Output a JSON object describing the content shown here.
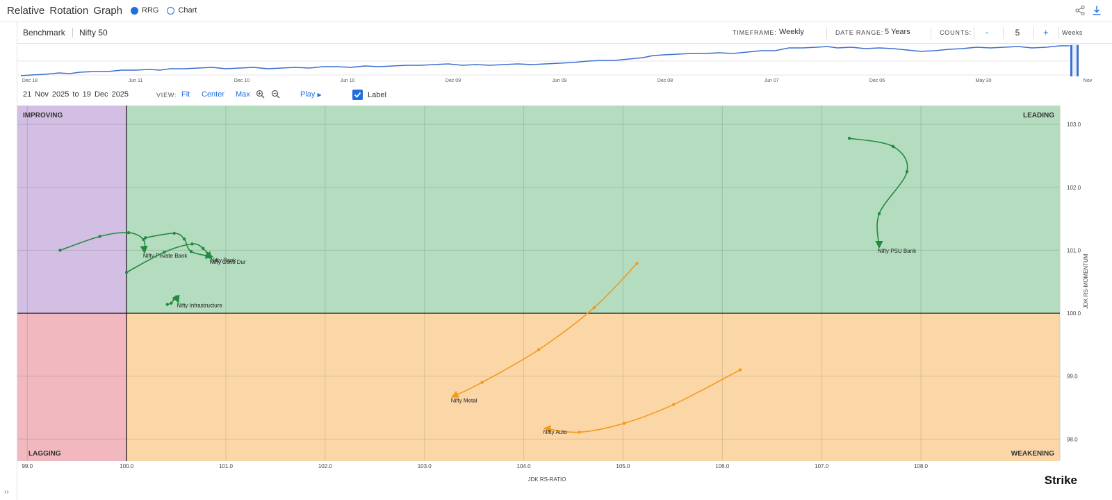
{
  "header": {
    "title": "Relative Rotation Graph",
    "modes": [
      {
        "label": "RRG",
        "selected": true
      },
      {
        "label": "Chart",
        "selected": false
      }
    ],
    "icons": [
      "share-icon",
      "download-icon"
    ]
  },
  "controls": {
    "benchmark_label": "Benchmark",
    "benchmark_value": "Nifty 50",
    "timeframe_label": "TIMEFRAME:",
    "timeframe_value": "Weekly",
    "date_range_label": "DATE RANGE:",
    "date_range_value": "5 Years",
    "counts_label": "COUNTS:",
    "counts_minus": "-",
    "counts_value": "5",
    "counts_plus": "+",
    "counts_unit": "Weeks"
  },
  "timeline": {
    "tick_labels": [
      "Dec 18",
      "Jun 11",
      "Dec 10",
      "Jun 10",
      "Dec 09",
      "Jun 09",
      "Dec 08",
      "Jun 07",
      "Dec 06",
      "May 30",
      "Nov"
    ],
    "line_color": "#3b6fd0"
  },
  "view": {
    "range_text": "21 Nov 2025 to 19 Dec 2025",
    "view_label": "VIEW:",
    "fit": "Fit",
    "center": "Center",
    "max": "Max",
    "play": "Play",
    "label_toggle": "Label",
    "label_checked": true
  },
  "brand": "Strike",
  "chart_data": {
    "type": "scatter",
    "xlabel": "JDK RS-RATIO",
    "ylabel": "JDK RS-MOMENTUM",
    "xlim": [
      98.9,
      109.4
    ],
    "ylim": [
      97.65,
      103.3
    ],
    "xticks": [
      "99.0",
      "100.0",
      "101.0",
      "102.0",
      "103.0",
      "104.0",
      "105.0",
      "106.0",
      "107.0",
      "108.0"
    ],
    "yticks": [
      "98.0",
      "99.0",
      "100.0",
      "101.0",
      "102.0",
      "103.0"
    ],
    "center": [
      100.0,
      100.0
    ],
    "quadrants": {
      "improving": {
        "label": "IMPROVING",
        "color": "#d2bfe3"
      },
      "leading": {
        "label": "LEADING",
        "color": "#b4dcbf"
      },
      "weakening": {
        "label": "WEAKENING",
        "color": "#fbd7a8"
      },
      "lagging": {
        "label": "LAGGING",
        "color": "#f1b8bf"
      }
    },
    "grid": true,
    "series": [
      {
        "name": "Nifty PSU Bank",
        "color": "#238a3f",
        "points": [
          [
            107.28,
            102.78
          ],
          [
            107.72,
            102.65
          ],
          [
            107.86,
            102.25
          ],
          [
            107.58,
            101.58
          ],
          [
            107.58,
            101.05
          ]
        ]
      },
      {
        "name": "Nifty Private Bank",
        "color": "#238a3f",
        "points": [
          [
            99.33,
            101.0
          ],
          [
            99.73,
            101.22
          ],
          [
            100.02,
            101.28
          ],
          [
            100.17,
            101.17
          ],
          [
            100.18,
            100.97
          ]
        ]
      },
      {
        "name": "Nifty Bank",
        "color": "#238a3f",
        "points": [
          [
            100.19,
            101.2
          ],
          [
            100.48,
            101.27
          ],
          [
            100.58,
            101.18
          ],
          [
            100.65,
            100.98
          ],
          [
            100.86,
            100.9
          ]
        ]
      },
      {
        "name": "Nifty Cons Dur",
        "color": "#238a3f",
        "points": [
          [
            100.0,
            100.65
          ],
          [
            100.38,
            100.97
          ],
          [
            100.66,
            101.1
          ],
          [
            100.77,
            101.03
          ],
          [
            100.85,
            100.87
          ]
        ]
      },
      {
        "name": "Nifty Infrastructure",
        "color": "#238a3f",
        "points": [
          [
            100.41,
            100.14
          ],
          [
            100.45,
            100.16
          ],
          [
            100.48,
            100.23
          ],
          [
            100.5,
            100.26
          ],
          [
            100.52,
            100.18
          ]
        ]
      },
      {
        "name": "Nifty Metal",
        "color": "#f39a1e",
        "points": [
          [
            105.14,
            100.79
          ],
          [
            104.71,
            100.09
          ],
          [
            104.15,
            99.42
          ],
          [
            103.58,
            98.9
          ],
          [
            103.28,
            98.67
          ]
        ]
      },
      {
        "name": "Nifty Auto",
        "color": "#f39a1e",
        "points": [
          [
            106.18,
            99.1
          ],
          [
            105.51,
            98.55
          ],
          [
            105.01,
            98.25
          ],
          [
            104.56,
            98.11
          ],
          [
            104.21,
            98.17
          ]
        ]
      }
    ]
  }
}
